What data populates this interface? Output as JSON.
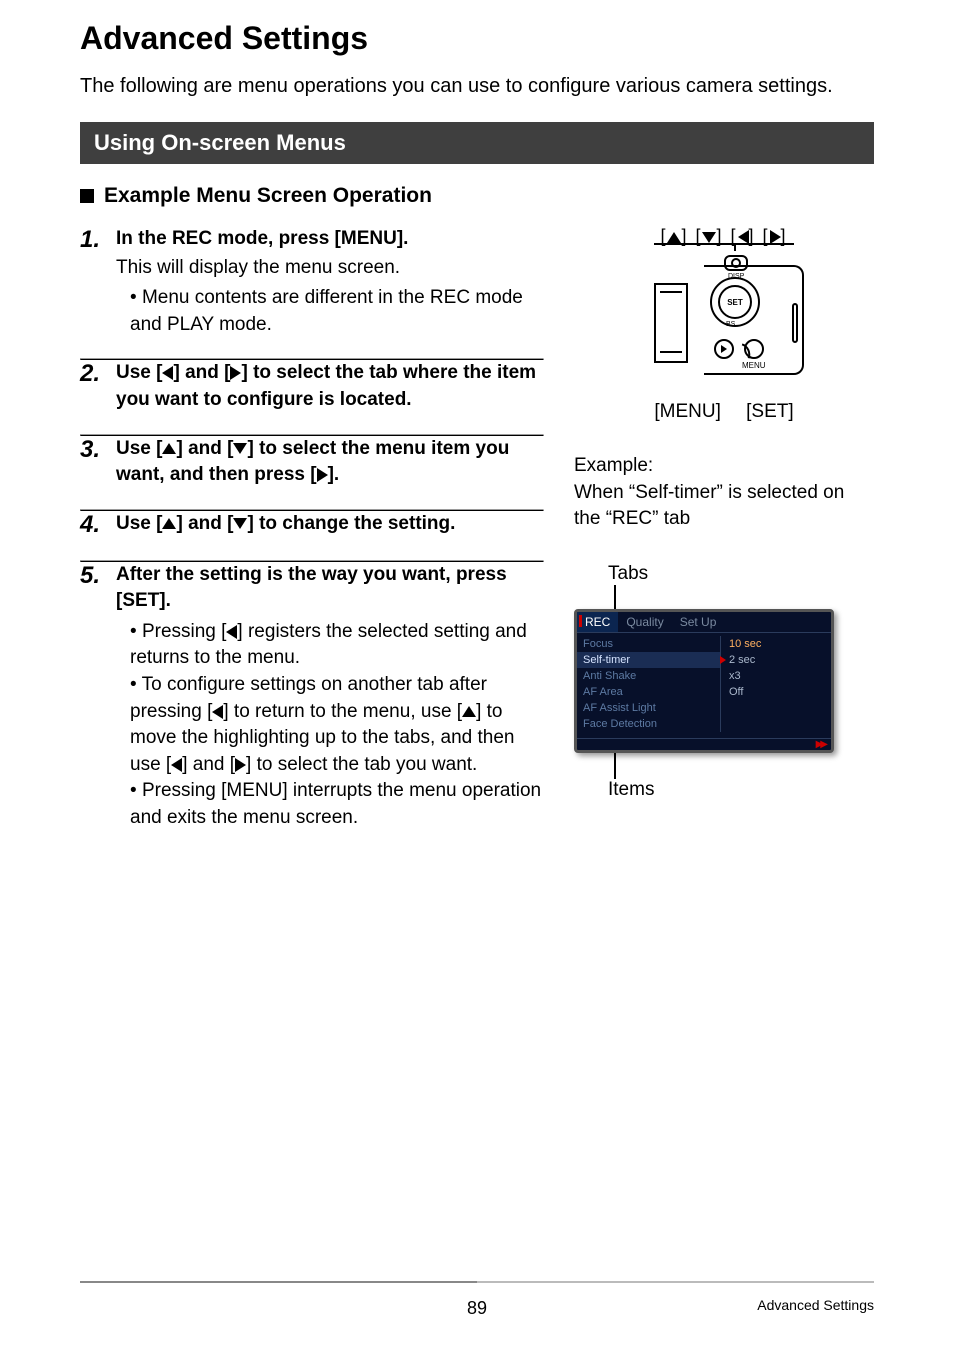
{
  "page": {
    "title": "Advanced Settings",
    "intro": "The following are menu operations you can use to configure various camera settings.",
    "section": "Using On-screen Menus",
    "subheading": "Example Menu Screen Operation",
    "page_number": "89",
    "footer_label": "Advanced Settings"
  },
  "steps": [
    {
      "num": "1.",
      "instr": "In the REC mode, press [MENU].",
      "desc": "This will display the menu screen.",
      "bullets": [
        "Menu contents are different in the REC mode and PLAY mode."
      ]
    },
    {
      "num": "2.",
      "instr_parts": [
        "Use [",
        "LEFT",
        "] and [",
        "RIGHT",
        "] to select the tab where the item you want to configure is located."
      ]
    },
    {
      "num": "3.",
      "instr_parts": [
        "Use [",
        "UP",
        "] and [",
        "DOWN",
        "] to select the menu item you want, and then press [",
        "RIGHT",
        "]."
      ]
    },
    {
      "num": "4.",
      "instr_parts": [
        "Use [",
        "UP",
        "] and [",
        "DOWN",
        "] to change the setting."
      ]
    },
    {
      "num": "5.",
      "instr": "After the setting is the way you want, press [SET].",
      "bullets_mixed": [
        [
          "Pressing [",
          "LEFT",
          "] registers the selected setting and returns to the menu."
        ],
        [
          "To configure settings on another tab after pressing [",
          "LEFT",
          "] to return to the menu, use [",
          "UP",
          "] to move the highlighting up to the tabs, and then use [",
          "LEFT",
          "] and [",
          "RIGHT",
          "] to select the tab you want."
        ],
        [
          "Pressing [MENU] interrupts the menu operation and exits the menu screen."
        ]
      ]
    }
  ],
  "diagram": {
    "arrow_row": [
      "UP",
      "DOWN",
      "LEFT",
      "RIGHT"
    ],
    "set_label": "SET",
    "disp_label": "DISP",
    "bs_label": "BS",
    "menu_label": "MENU",
    "labels": {
      "menu": "[MENU]",
      "set": "[SET]"
    }
  },
  "example": {
    "heading": "Example:",
    "text": "When “Self-timer” is selected on the “REC” tab"
  },
  "tabs_label": "Tabs",
  "items_label": "Items",
  "menu_screenshot": {
    "tabs": [
      {
        "label": "REC",
        "active": true
      },
      {
        "label": "Quality",
        "active": false
      },
      {
        "label": "Set Up",
        "active": false
      }
    ],
    "items": [
      {
        "label": "Focus",
        "selected": false
      },
      {
        "label": "Self-timer",
        "selected": true
      },
      {
        "label": "Anti Shake",
        "selected": false
      },
      {
        "label": "AF Area",
        "selected": false
      },
      {
        "label": "AF Assist Light",
        "selected": false
      },
      {
        "label": "Face Detection",
        "selected": false
      }
    ],
    "values": [
      {
        "label": "10 sec",
        "highlight": true
      },
      {
        "label": "2 sec",
        "highlight": false
      },
      {
        "label": "x3",
        "highlight": false
      },
      {
        "label": "Off",
        "highlight": false
      }
    ],
    "colors": {
      "bg": "#07102a",
      "tab_active_bg": "#0b2550",
      "accent_red": "#c00000",
      "text_dim": "#5d7aa3",
      "text_tab_dim": "#7a8aa0",
      "text_sel": "#d6e4ff",
      "value_hl": "#ffb060",
      "border": "#2a3b5c"
    }
  }
}
